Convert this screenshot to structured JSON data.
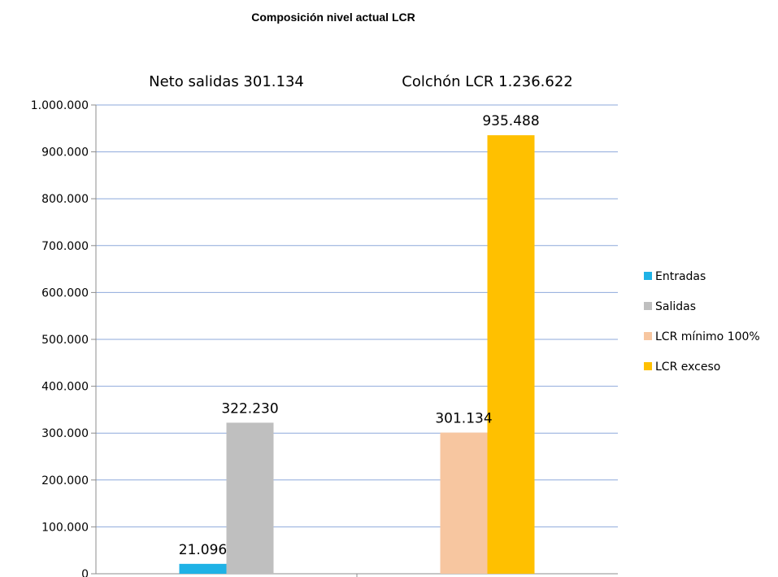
{
  "chart_data": {
    "type": "bar",
    "title": "Composición nivel actual LCR",
    "categories": [
      "Neto salidas 301.134",
      "Colchón LCR 1.236.622"
    ],
    "ylim": [
      0,
      1000000
    ],
    "yticks": [
      0,
      100000,
      200000,
      300000,
      400000,
      500000,
      600000,
      700000,
      800000,
      900000,
      1000000
    ],
    "ytick_labels": [
      "0",
      "100.000",
      "200.000",
      "300.000",
      "400.000",
      "500.000",
      "600.000",
      "700.000",
      "800.000",
      "900.000",
      "1.000.000"
    ],
    "grid": true,
    "legend_position": "right",
    "series": [
      {
        "name": "Entradas",
        "color": "#1fb2e6",
        "values": [
          21096,
          null
        ],
        "labels": [
          "21.096",
          ""
        ]
      },
      {
        "name": "Salidas",
        "color": "#bfbfbf",
        "values": [
          322230,
          null
        ],
        "labels": [
          "322.230",
          ""
        ]
      },
      {
        "name": "LCR mínimo 100%",
        "color": "#f7c6a0",
        "values": [
          null,
          301134
        ],
        "labels": [
          "",
          "301.134"
        ]
      },
      {
        "name": "LCR exceso",
        "color": "#ffc000",
        "values": [
          null,
          935488
        ],
        "labels": [
          "",
          "935.488"
        ]
      }
    ]
  }
}
